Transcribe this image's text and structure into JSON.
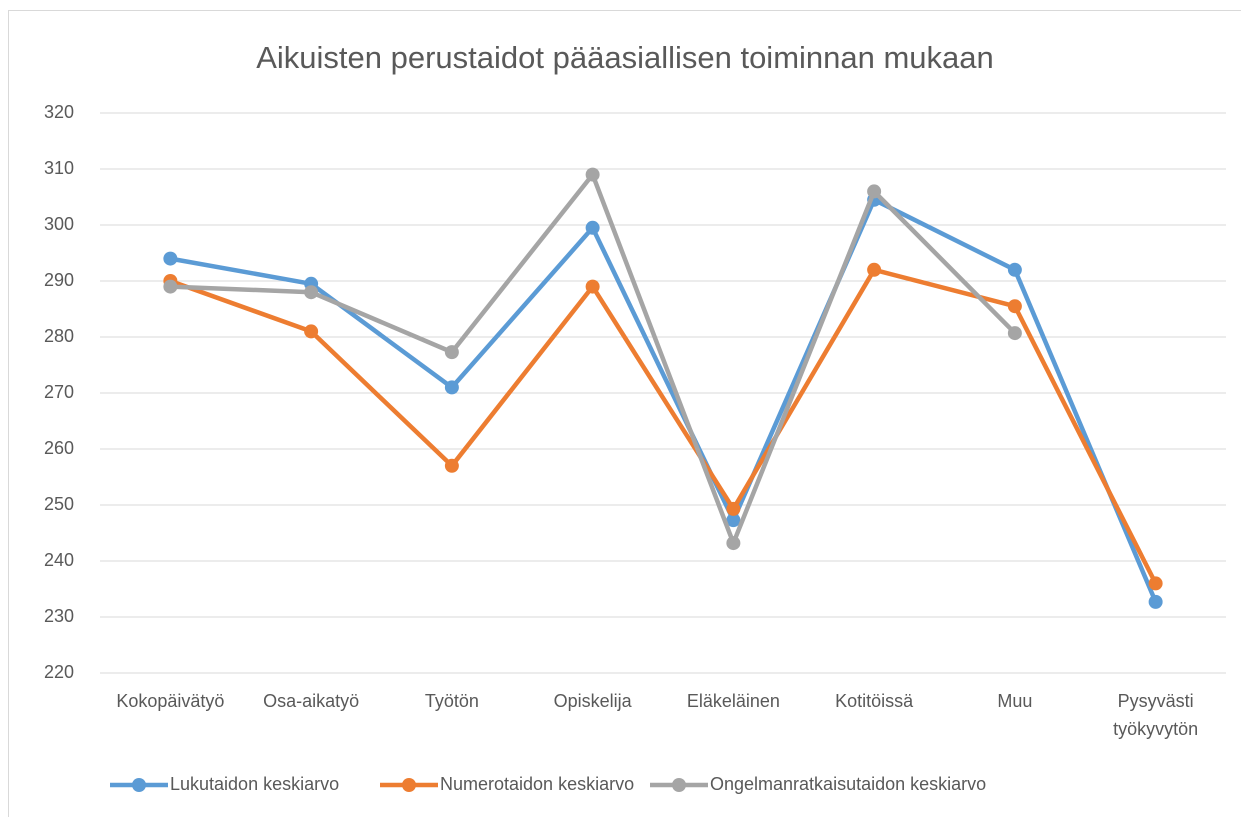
{
  "chart_data": {
    "type": "line",
    "title": "Aikuisten perustaidot pääasiallisen toiminnan mukaan",
    "categories": [
      "Kokopäivätyö",
      "Osa-aikatyö",
      "Työtön",
      "Opiskelija",
      "Eläkeläinen",
      "Kotitöissä",
      "Muu",
      "Pysyvästi työkyvytön"
    ],
    "series": [
      {
        "name": "Lukutaidon keskiarvo",
        "color": "#5b9bd5",
        "values": [
          294,
          289.5,
          271,
          299.5,
          247.3,
          304.5,
          292,
          232.7
        ]
      },
      {
        "name": "Numerotaidon keskiarvo",
        "color": "#ed7d31",
        "values": [
          290,
          281,
          257,
          289,
          249.3,
          292,
          285.5,
          236
        ]
      },
      {
        "name": "Ongelmanratkaisutaidon keskiarvo",
        "color": "#a5a5a5",
        "values": [
          289,
          288,
          277.3,
          309,
          243.2,
          306,
          280.7,
          null
        ]
      }
    ],
    "ylim": [
      220,
      320
    ],
    "yticks": [
      220,
      230,
      240,
      250,
      260,
      270,
      280,
      290,
      300,
      310,
      320
    ],
    "grid": true,
    "legend": "bottom"
  }
}
